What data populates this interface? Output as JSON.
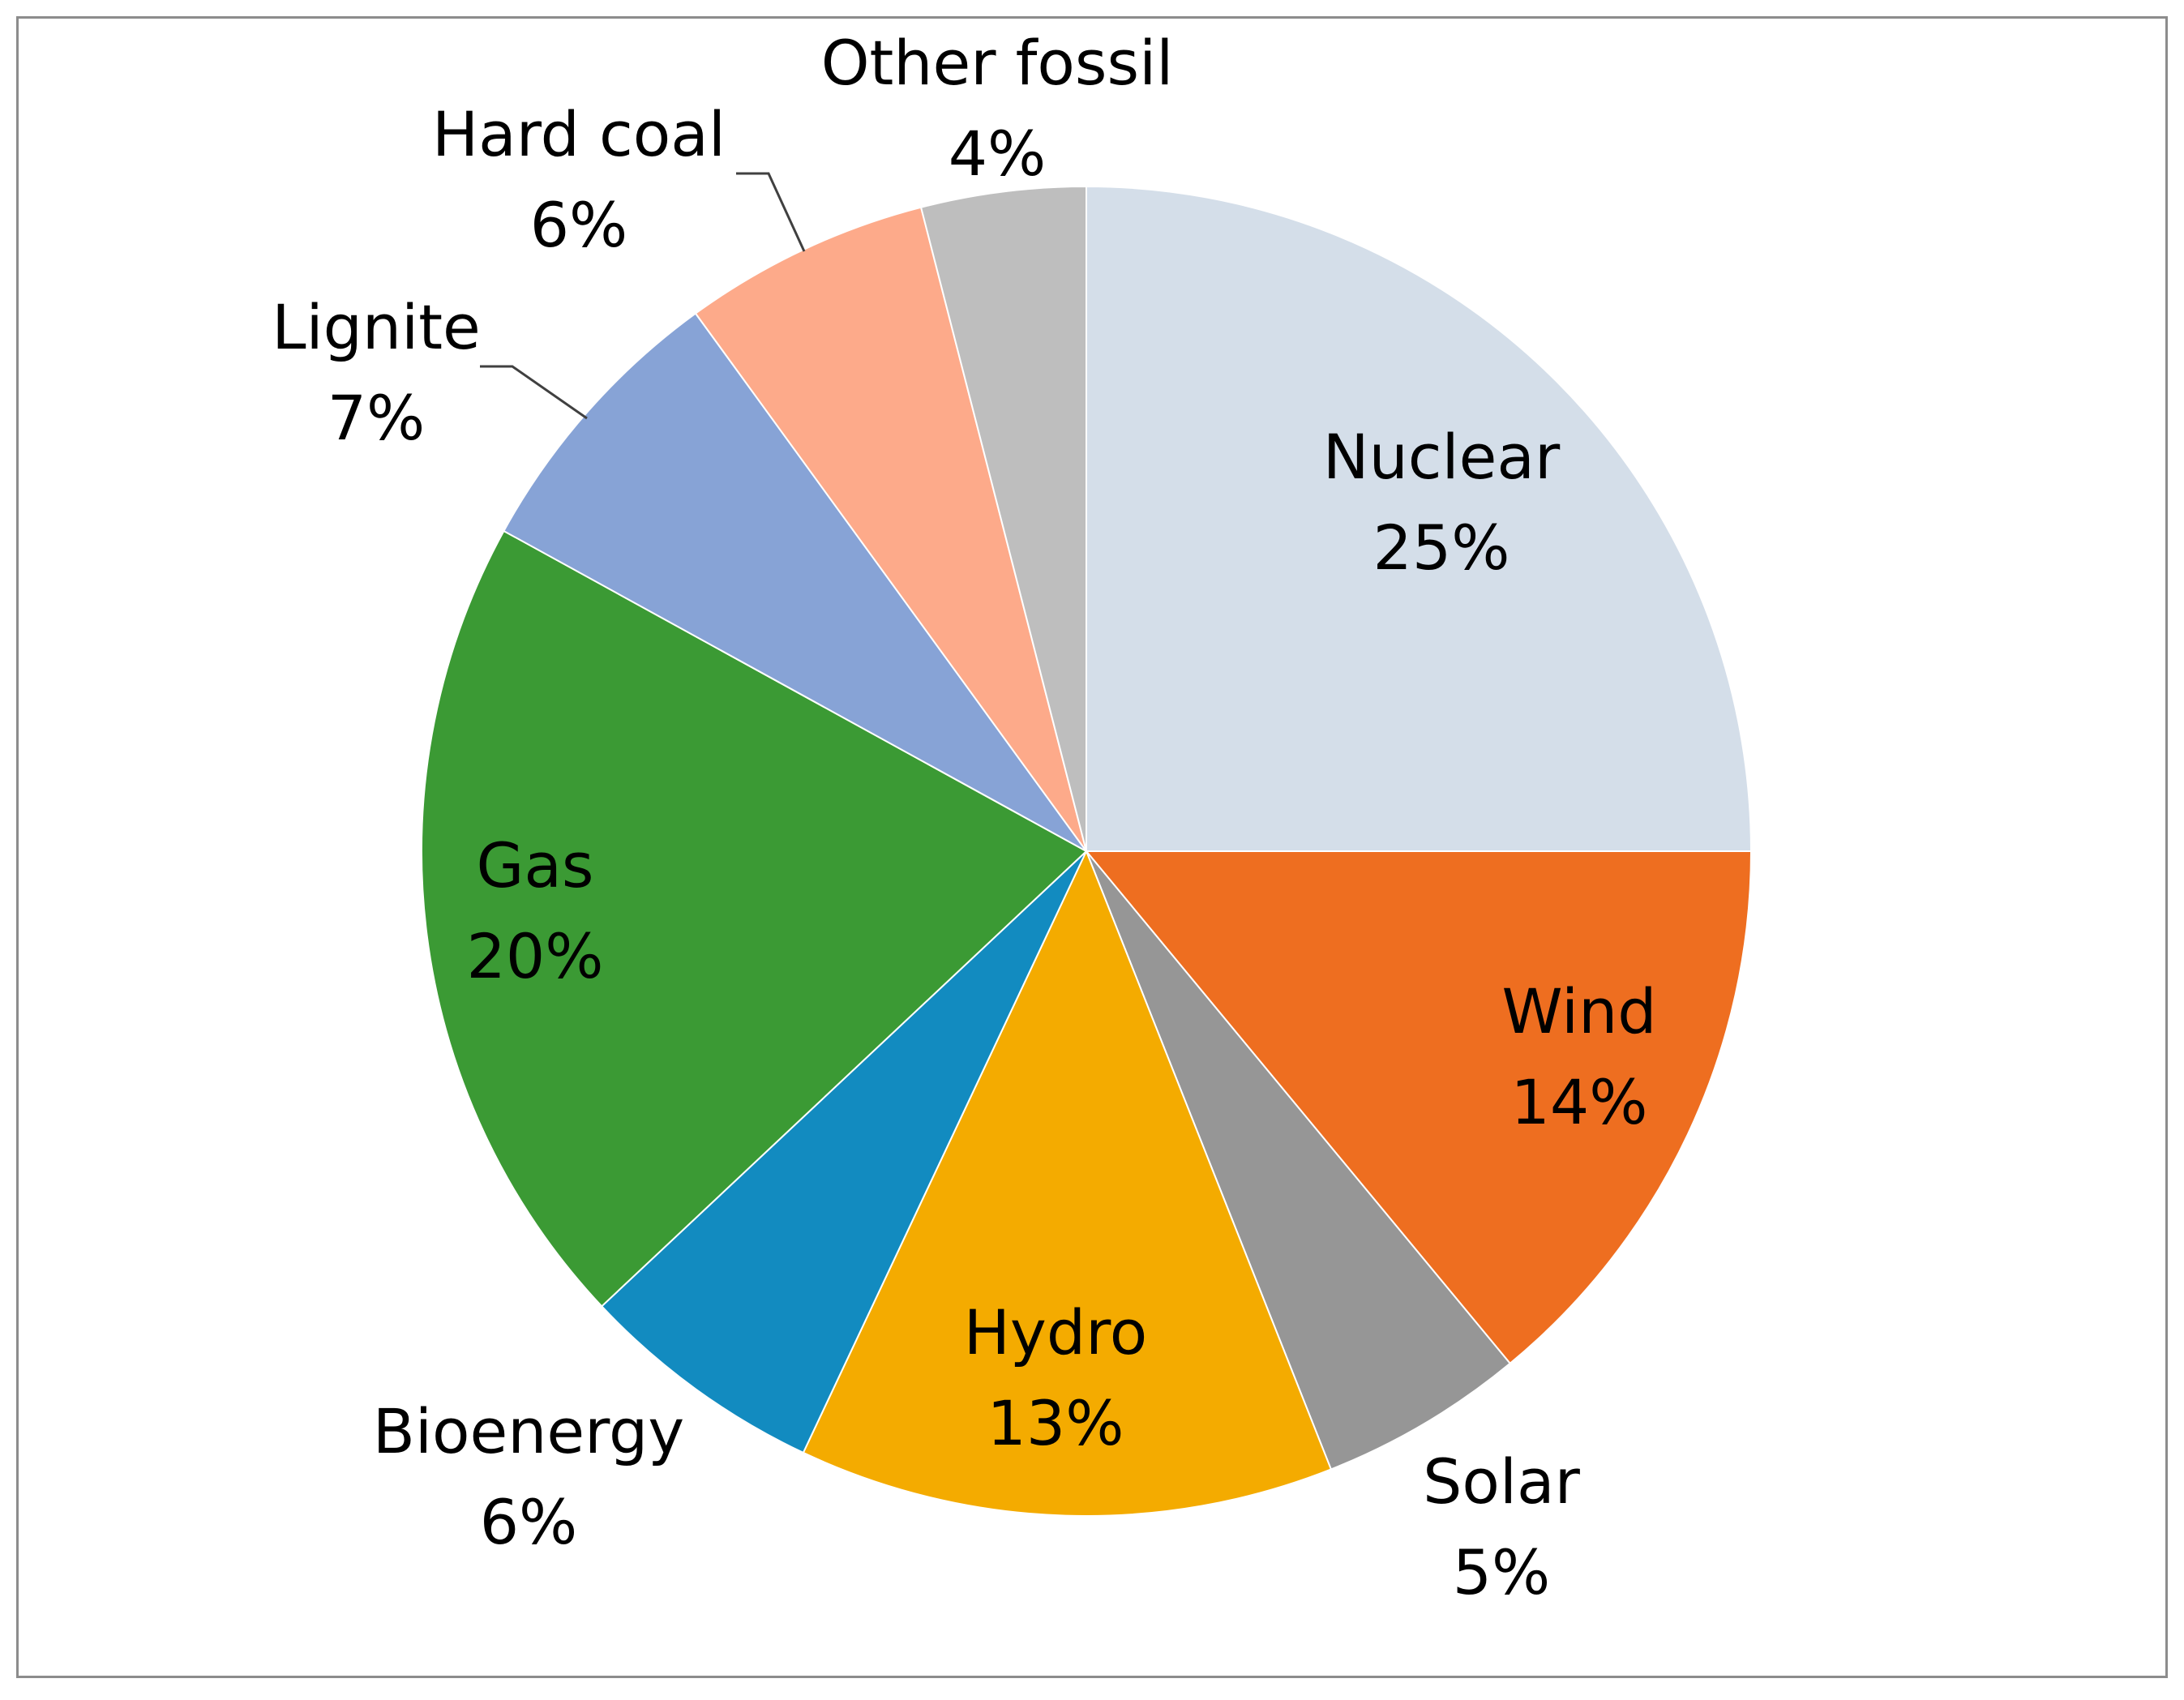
{
  "chart_data": {
    "type": "pie",
    "title": "",
    "start_angle_deg": 0,
    "direction": "clockwise",
    "slices": [
      {
        "label": "Nuclear",
        "value": 25,
        "display": "25%",
        "color": "#D4DEE9"
      },
      {
        "label": "Wind",
        "value": 14,
        "display": "14%",
        "color": "#EE6E20"
      },
      {
        "label": "Solar",
        "value": 5,
        "display": "5%",
        "color": "#969696"
      },
      {
        "label": "Hydro",
        "value": 13,
        "display": "13%",
        "color": "#F4AB00"
      },
      {
        "label": "Bioenergy",
        "value": 6,
        "display": "6%",
        "color": "#128BC0"
      },
      {
        "label": "Gas",
        "value": 20,
        "display": "20%",
        "color": "#3B9A34"
      },
      {
        "label": "Lignite",
        "value": 7,
        "display": "7%",
        "color": "#87A3D6"
      },
      {
        "label": "Hard coal",
        "value": 6,
        "display": "6%",
        "color": "#FDAA8A"
      },
      {
        "label": "Other fossil",
        "value": 4,
        "display": "4%",
        "color": "#BEBEBE"
      }
    ],
    "legend": "none",
    "data_labels": "category name and percentage"
  }
}
